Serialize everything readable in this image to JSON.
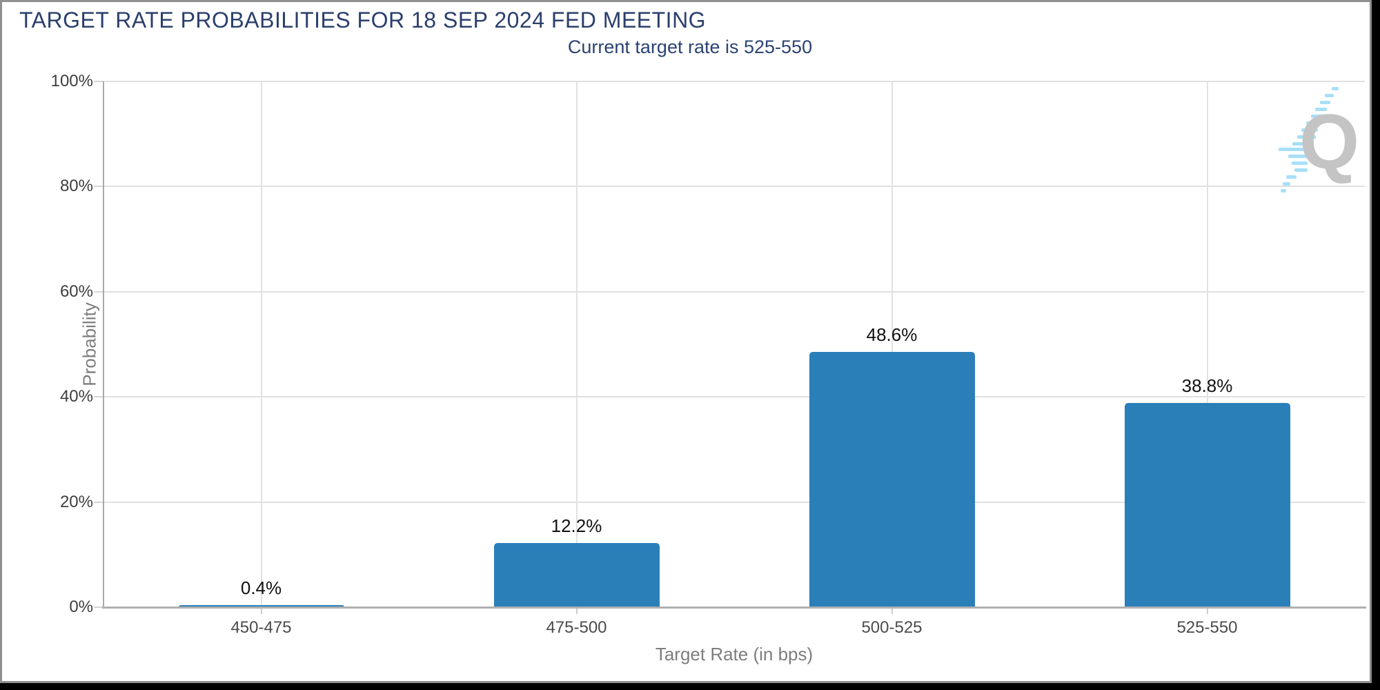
{
  "header": {
    "title": "TARGET RATE PROBABILITIES FOR 18 SEP 2024 FED MEETING",
    "subtitle": "Current target rate is 525-550"
  },
  "chart_data": {
    "type": "bar",
    "title": "TARGET RATE PROBABILITIES FOR 18 SEP 2024 FED MEETING",
    "subtitle": "Current target rate is 525-550",
    "categories": [
      "450-475",
      "475-500",
      "500-525",
      "525-550"
    ],
    "values": [
      0.4,
      12.2,
      48.6,
      38.8
    ],
    "value_labels": [
      "0.4%",
      "12.2%",
      "48.6%",
      "38.8%"
    ],
    "xlabel": "Target Rate (in bps)",
    "ylabel": "Probability",
    "ylim": [
      0,
      100
    ],
    "ytick_labels": [
      "0%",
      "20%",
      "40%",
      "60%",
      "80%",
      "100%"
    ],
    "ytick_values": [
      0,
      20,
      40,
      60,
      80,
      100
    ],
    "grid": true,
    "legend": "none",
    "bar_color": "#2A7FB9"
  },
  "watermark": {
    "letter": "Q",
    "q_color": "#C4C4C4",
    "dash_color": "#A8DFF8"
  }
}
